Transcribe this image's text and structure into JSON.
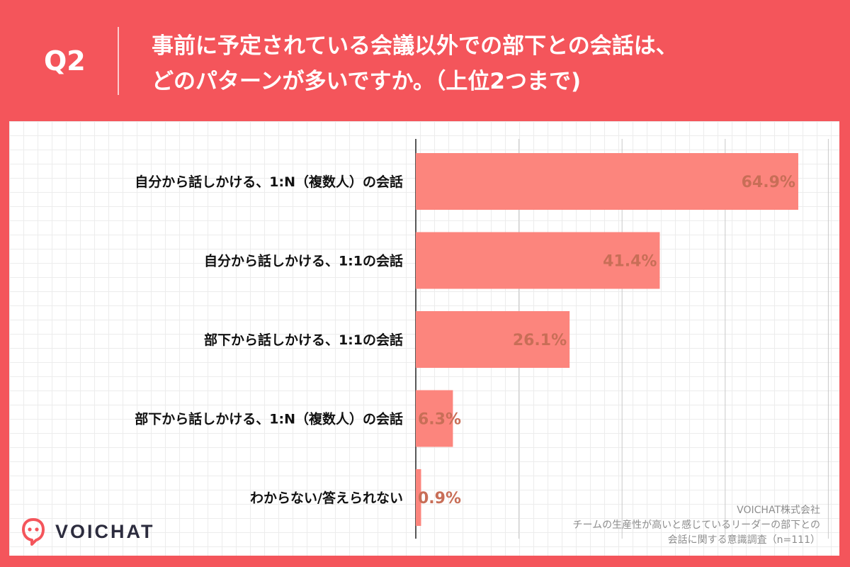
{
  "header": {
    "q_label": "Q2",
    "question_line1": "事前に予定されている会議以外での部下との会話は、",
    "question_line2": "どのパターンが多いですか。（上位2つまで)"
  },
  "colors": {
    "background": "#F4555B",
    "bar": "#FC857D",
    "value_label": "#C86E57"
  },
  "chart_data": {
    "type": "bar",
    "orientation": "horizontal",
    "categories": [
      "自分から話しかける、1:N（複数人）の会話",
      "自分から話しかける、1:1の会話",
      "部下から話しかける、1:1の会話",
      "部下から話しかける、1:N（複数人）の会話",
      "わからない/答えられない"
    ],
    "values": [
      64.9,
      41.4,
      26.1,
      6.3,
      0.9
    ],
    "value_labels": [
      "64.9%",
      "41.4%",
      "26.1%",
      "6.3%",
      "0.9%"
    ],
    "unit": "%",
    "xlim": [
      0,
      70
    ],
    "grid_step": 17.5,
    "title": "事前に予定されている会議以外での部下との会話は、どのパターンが多いですか。（上位2つまで)"
  },
  "source": {
    "company": "VOICHAT株式会社",
    "survey_line1": "チームの生産性が高いと感じているリーダーの部下との",
    "survey_line2": "会話に関する意識調査（n=111）"
  },
  "logo": {
    "text": "VOICHAT",
    "icon": "voichat-speech-bubble-icon"
  }
}
